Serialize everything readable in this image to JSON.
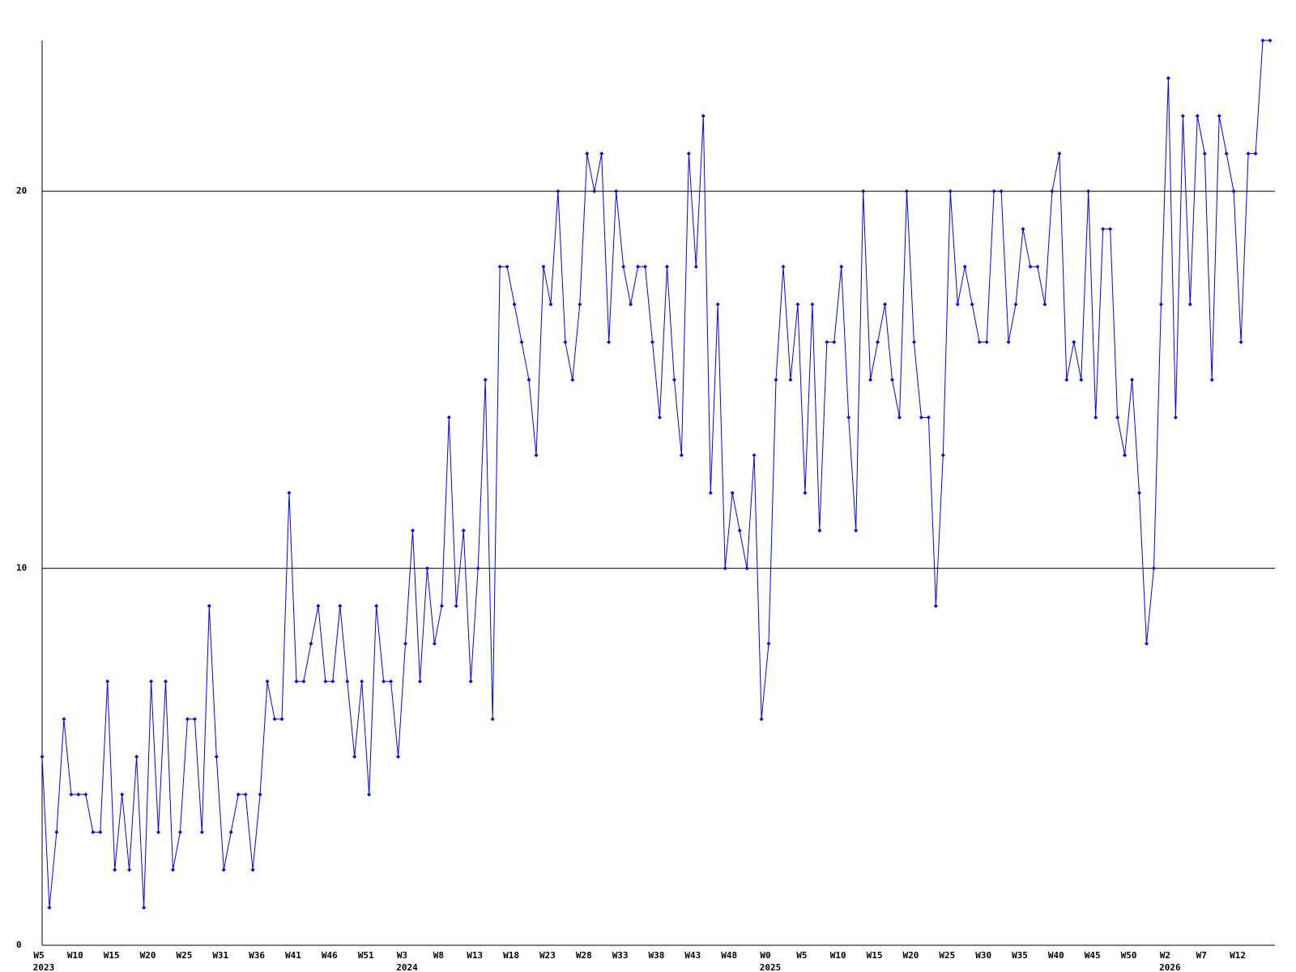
{
  "chart_data": {
    "type": "line",
    "categories": [
      "W5",
      null,
      null,
      null,
      null,
      "W10",
      null,
      null,
      null,
      null,
      "W15",
      null,
      null,
      null,
      null,
      "W20",
      null,
      null,
      null,
      null,
      "W25",
      null,
      null,
      null,
      null,
      "W31",
      null,
      null,
      null,
      null,
      "W36",
      null,
      null,
      null,
      null,
      "W41",
      null,
      null,
      null,
      null,
      "W46",
      null,
      null,
      null,
      null,
      "W51",
      null,
      null,
      null,
      null,
      "W3",
      null,
      null,
      null,
      null,
      "W8",
      null,
      null,
      null,
      null,
      "W13",
      null,
      null,
      null,
      null,
      "W18",
      null,
      null,
      null,
      null,
      "W23",
      null,
      null,
      null,
      null,
      "W28",
      null,
      null,
      null,
      null,
      "W33",
      null,
      null,
      null,
      null,
      "W38",
      null,
      null,
      null,
      null,
      "W43",
      null,
      null,
      null,
      null,
      "W48",
      null,
      null,
      null,
      null,
      "W0",
      null,
      null,
      null,
      null,
      "W5",
      null,
      null,
      null,
      null,
      "W10",
      null,
      null,
      null,
      null,
      "W15",
      null,
      null,
      null,
      null,
      "W20",
      null,
      null,
      null,
      null,
      "W25",
      null,
      null,
      null,
      null,
      "W30",
      null,
      null,
      null,
      null,
      "W35",
      null,
      null,
      null,
      null,
      "W40",
      null,
      null,
      null,
      null,
      "W45",
      null,
      null,
      null,
      null,
      "W50",
      null,
      null,
      null,
      null,
      "W2",
      null,
      null,
      null,
      null,
      "W7",
      null,
      null,
      null,
      null,
      "W12",
      null,
      null,
      null,
      null
    ],
    "years": [
      "2023",
      null,
      null,
      null,
      null,
      null,
      null,
      null,
      null,
      null,
      null,
      null,
      null,
      null,
      null,
      null,
      null,
      null,
      null,
      null,
      null,
      null,
      null,
      null,
      null,
      null,
      null,
      null,
      null,
      null,
      null,
      null,
      null,
      null,
      null,
      null,
      null,
      null,
      null,
      null,
      null,
      null,
      null,
      null,
      null,
      null,
      null,
      null,
      null,
      null,
      "2024",
      null,
      null,
      null,
      null,
      null,
      null,
      null,
      null,
      null,
      null,
      null,
      null,
      null,
      null,
      null,
      null,
      null,
      null,
      null,
      null,
      null,
      null,
      null,
      null,
      null,
      null,
      null,
      null,
      null,
      null,
      null,
      null,
      null,
      null,
      null,
      null,
      null,
      null,
      null,
      null,
      null,
      null,
      null,
      null,
      null,
      null,
      null,
      null,
      null,
      "2025",
      null,
      null,
      null,
      null,
      null,
      null,
      null,
      null,
      null,
      null,
      null,
      null,
      null,
      null,
      null,
      null,
      null,
      null,
      null,
      null,
      null,
      null,
      null,
      null,
      null,
      null,
      null,
      null,
      null,
      null,
      null,
      null,
      null,
      null,
      null,
      null,
      null,
      null,
      null,
      null,
      null,
      null,
      null,
      null,
      null,
      null,
      null,
      null,
      null,
      null,
      null,
      null,
      null,
      null,
      "2026",
      null,
      null,
      null,
      null,
      null,
      null,
      null,
      null,
      null,
      null,
      null,
      null,
      null,
      null
    ],
    "series": [
      {
        "color": "#0000ff",
        "values": [
          5,
          1,
          3,
          6,
          4,
          4,
          4,
          3,
          3,
          7,
          2,
          4,
          2,
          5,
          1,
          7,
          3,
          7,
          2,
          3,
          6,
          6,
          3,
          9,
          5,
          2,
          3,
          4,
          4,
          2,
          4,
          7,
          6,
          6,
          12,
          7,
          7,
          8,
          9,
          7,
          7,
          9,
          7,
          5,
          7,
          4,
          9,
          7,
          7,
          5,
          8,
          11,
          7,
          10,
          8,
          9,
          14,
          9,
          11,
          7,
          10,
          15,
          6,
          18,
          18,
          17,
          16,
          15,
          13,
          18,
          17,
          20,
          16,
          15,
          17,
          21,
          20,
          21,
          16,
          20,
          18,
          17,
          18,
          18,
          16,
          14,
          18,
          15,
          13,
          21,
          18,
          22,
          12,
          17,
          10,
          12,
          11,
          10,
          13,
          6,
          8,
          15,
          18,
          15,
          17,
          12,
          17,
          11,
          16,
          16,
          18,
          14,
          11,
          20,
          15,
          16,
          17,
          15,
          14,
          20,
          16,
          14,
          14,
          9,
          13,
          20,
          17,
          18,
          17,
          16,
          16,
          20,
          20,
          16,
          17,
          19,
          18,
          18,
          17,
          20,
          21,
          15,
          16,
          15,
          20,
          14,
          19,
          19,
          14,
          13,
          15,
          12,
          8,
          10,
          17,
          23,
          14,
          22,
          17,
          22,
          21,
          15,
          22,
          21,
          20,
          16,
          21,
          21,
          24,
          24
        ]
      }
    ],
    "ylim": [
      0,
      24
    ],
    "yticks": [
      0,
      10,
      20
    ],
    "grid": true
  }
}
